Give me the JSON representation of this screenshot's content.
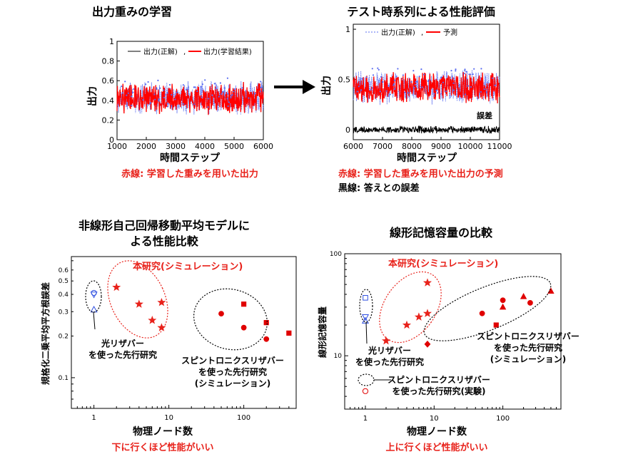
{
  "chart_data": [
    {
      "type": "line",
      "title": "出力重みの学習",
      "xlabel": "時間ステップ",
      "ylabel": "出力",
      "xlim": [
        1000,
        6000
      ],
      "ylim": [
        0,
        1
      ],
      "xticks": [
        "1000",
        "2000",
        "3000",
        "4000",
        "5000",
        "6000"
      ],
      "yticks": [
        "0",
        "0.2",
        "0.4",
        "0.6",
        "0.8",
        "1"
      ],
      "legend_placement": "top",
      "series": [
        {
          "name": "出力(正解)",
          "color": "#5a6cf0",
          "x_range": [
            1000,
            6000
          ],
          "mean": 0.42,
          "spread": 0.14
        },
        {
          "name": "出力(学習結果)",
          "color": "#ff0000",
          "x_range": [
            1000,
            6000
          ],
          "mean": 0.42,
          "spread": 0.13
        }
      ],
      "caption": "赤線: 学習した重みを用いた出力",
      "caption_color": "#e8221b"
    },
    {
      "type": "line",
      "title": "テスト時系列による性能評価",
      "xlabel": "時間ステップ",
      "ylabel": "出力",
      "xlim": [
        6000,
        11000
      ],
      "ylim": [
        -0.1,
        1.05
      ],
      "xticks": [
        "6000",
        "7000",
        "8000",
        "9000",
        "10000",
        "11000"
      ],
      "yticks": [
        "0",
        "0.5",
        "1"
      ],
      "legend_placement": "top",
      "series": [
        {
          "name": "出力(正解)",
          "color": "#5a6cf0",
          "x_range": [
            6000,
            11000
          ],
          "mean": 0.42,
          "spread": 0.14
        },
        {
          "name": "予測",
          "color": "#ff0000",
          "x_range": [
            6000,
            11000
          ],
          "mean": 0.42,
          "spread": 0.13
        },
        {
          "name": "誤差",
          "color": "#000000",
          "x_range": [
            6000,
            11000
          ],
          "mean": 0.0,
          "spread": 0.03
        }
      ],
      "annotations": [
        "誤差"
      ],
      "caption_lines": [
        "赤線: 学習した重みを用いた出力の予測",
        "黒線: 答えとの誤差"
      ],
      "caption_colors": [
        "#e8221b",
        "#000000"
      ]
    },
    {
      "type": "scatter",
      "title_lines": [
        "非線形自己回帰移動平均モデルに",
        "よる性能比較"
      ],
      "xlabel": "物理ノード数",
      "ylabel": "規格化二乗平均平方根誤差",
      "xscale": "log",
      "yscale": "log",
      "xlim": [
        0.5,
        500
      ],
      "ylim": [
        0.06,
        0.75
      ],
      "xticks": [
        "1",
        "10",
        "100"
      ],
      "yticks": [
        "0.1",
        "0.2",
        "0.3",
        "0.4",
        "0.5",
        "0.6"
      ],
      "groups": [
        {
          "label": "本研究(シミュレーション)",
          "color": "#e8221b",
          "points": [
            {
              "x": 2,
              "y": 0.45,
              "marker": "star"
            },
            {
              "x": 4,
              "y": 0.34,
              "marker": "star"
            },
            {
              "x": 6,
              "y": 0.26,
              "marker": "star"
            },
            {
              "x": 8,
              "y": 0.35,
              "marker": "star"
            },
            {
              "x": 8,
              "y": 0.23,
              "marker": "star"
            }
          ]
        },
        {
          "label_lines": [
            "光リザバー",
            "を使った先行研究"
          ],
          "color": "#3050e0",
          "points": [
            {
              "x": 1,
              "y": 0.41,
              "marker": "circle-open"
            },
            {
              "x": 1,
              "y": 0.4,
              "marker": "triangle-down-open"
            },
            {
              "x": 1,
              "y": 0.31,
              "marker": "triangle-open"
            }
          ]
        },
        {
          "label_lines": [
            "スピントロニクスリザバー",
            "を使った先行研究",
            "(シミュレーション)"
          ],
          "color": "#e00000",
          "points": [
            {
              "x": 50,
              "y": 0.29,
              "marker": "circle"
            },
            {
              "x": 100,
              "y": 0.34,
              "marker": "square"
            },
            {
              "x": 100,
              "y": 0.23,
              "marker": "circle"
            },
            {
              "x": 200,
              "y": 0.25,
              "marker": "square"
            },
            {
              "x": 200,
              "y": 0.19,
              "marker": "circle"
            },
            {
              "x": 400,
              "y": 0.21,
              "marker": "square"
            }
          ]
        }
      ],
      "caption": "下に行くほど性能がいい",
      "caption_color": "#e8221b"
    },
    {
      "type": "scatter",
      "title": "線形記憶容量の比較",
      "xlabel": "物理ノード数",
      "ylabel": "線形記憶容量",
      "xscale": "log",
      "yscale": "log",
      "xlim": [
        0.5,
        700
      ],
      "ylim": [
        3,
        100
      ],
      "xticks": [
        "1",
        "10",
        "100"
      ],
      "yticks": [
        "10",
        "100"
      ],
      "groups": [
        {
          "label": "本研究(シミュレーション)",
          "color": "#e8221b",
          "points": [
            {
              "x": 2,
              "y": 14,
              "marker": "star"
            },
            {
              "x": 4,
              "y": 20,
              "marker": "star"
            },
            {
              "x": 6,
              "y": 24,
              "marker": "star"
            },
            {
              "x": 8,
              "y": 26,
              "marker": "star"
            },
            {
              "x": 8,
              "y": 52,
              "marker": "star"
            }
          ]
        },
        {
          "label_lines": [
            "光リザバー",
            "を使った先行研究"
          ],
          "color": "#3050e0",
          "points": [
            {
              "x": 1,
              "y": 37,
              "marker": "square-open"
            },
            {
              "x": 1,
              "y": 22,
              "marker": "triangle-open"
            },
            {
              "x": 1,
              "y": 24,
              "marker": "triangle-down-open"
            }
          ]
        },
        {
          "label_lines": [
            "スピントロニクスリザバー",
            "を使った先行研究",
            "(シミュレーション)"
          ],
          "color": "#e00000",
          "points": [
            {
              "x": 8,
              "y": 13,
              "marker": "diamond"
            },
            {
              "x": 50,
              "y": 26,
              "marker": "circle"
            },
            {
              "x": 80,
              "y": 20,
              "marker": "square"
            },
            {
              "x": 100,
              "y": 35,
              "marker": "circle"
            },
            {
              "x": 100,
              "y": 30,
              "marker": "triangle"
            },
            {
              "x": 200,
              "y": 38,
              "marker": "triangle"
            },
            {
              "x": 250,
              "y": 33,
              "marker": "circle"
            },
            {
              "x": 500,
              "y": 43,
              "marker": "triangle"
            }
          ]
        },
        {
          "label_lines": [
            "スピントロニクスリザバー",
            "を使った先行研究(実験)"
          ],
          "color": "#e00000",
          "points": [
            {
              "x": 1,
              "y": 4.5,
              "marker": "circle-open"
            }
          ]
        }
      ],
      "caption": "上に行くほど性能がいい",
      "caption_color": "#e8221b"
    }
  ],
  "arrow": {
    "direction": "right",
    "color": "#000000"
  }
}
